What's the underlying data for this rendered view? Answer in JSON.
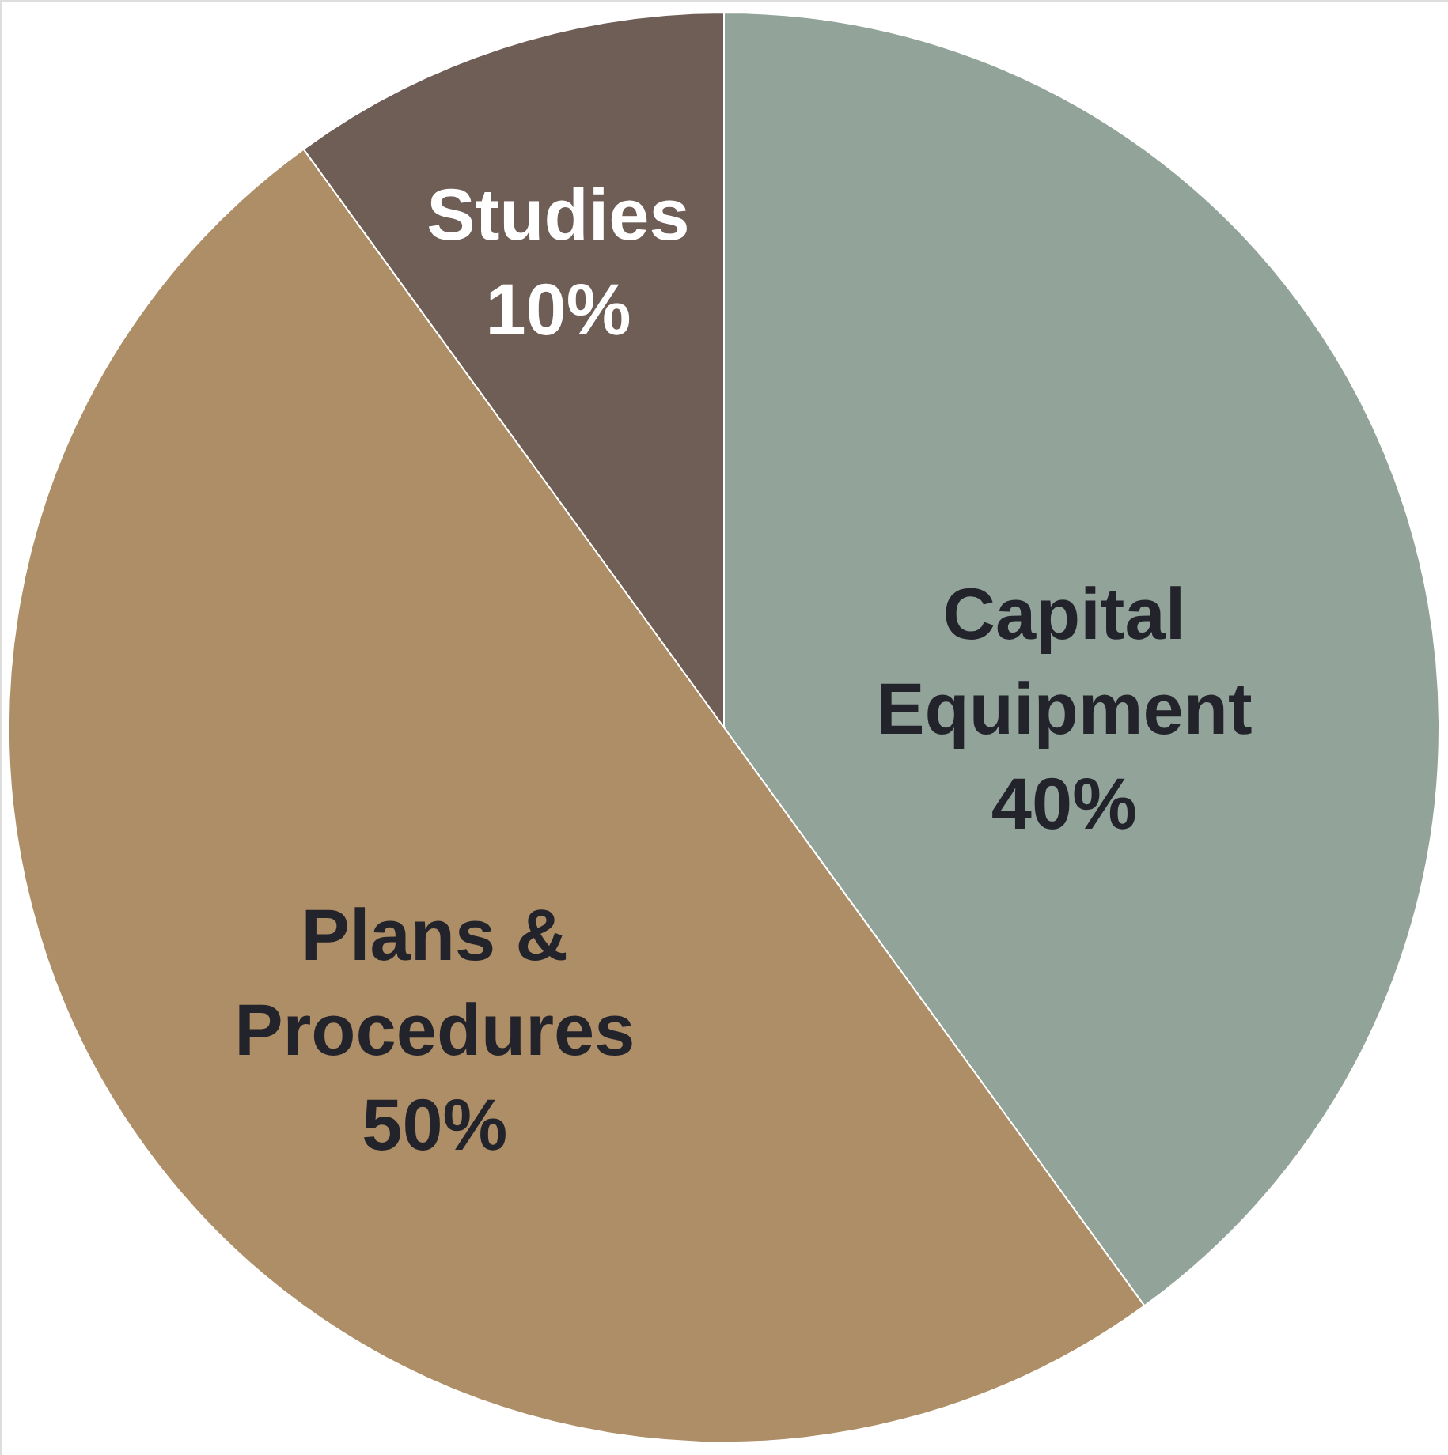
{
  "chart_data": {
    "type": "pie",
    "categories": [
      "Capital Equipment",
      "Plans & Procedures",
      "Studies"
    ],
    "values": [
      40,
      50,
      10
    ],
    "colors": [
      "#92a39a",
      "#ad8e66",
      "#6f5e55"
    ],
    "value_labels": [
      "40%",
      "50%",
      "10%"
    ]
  }
}
